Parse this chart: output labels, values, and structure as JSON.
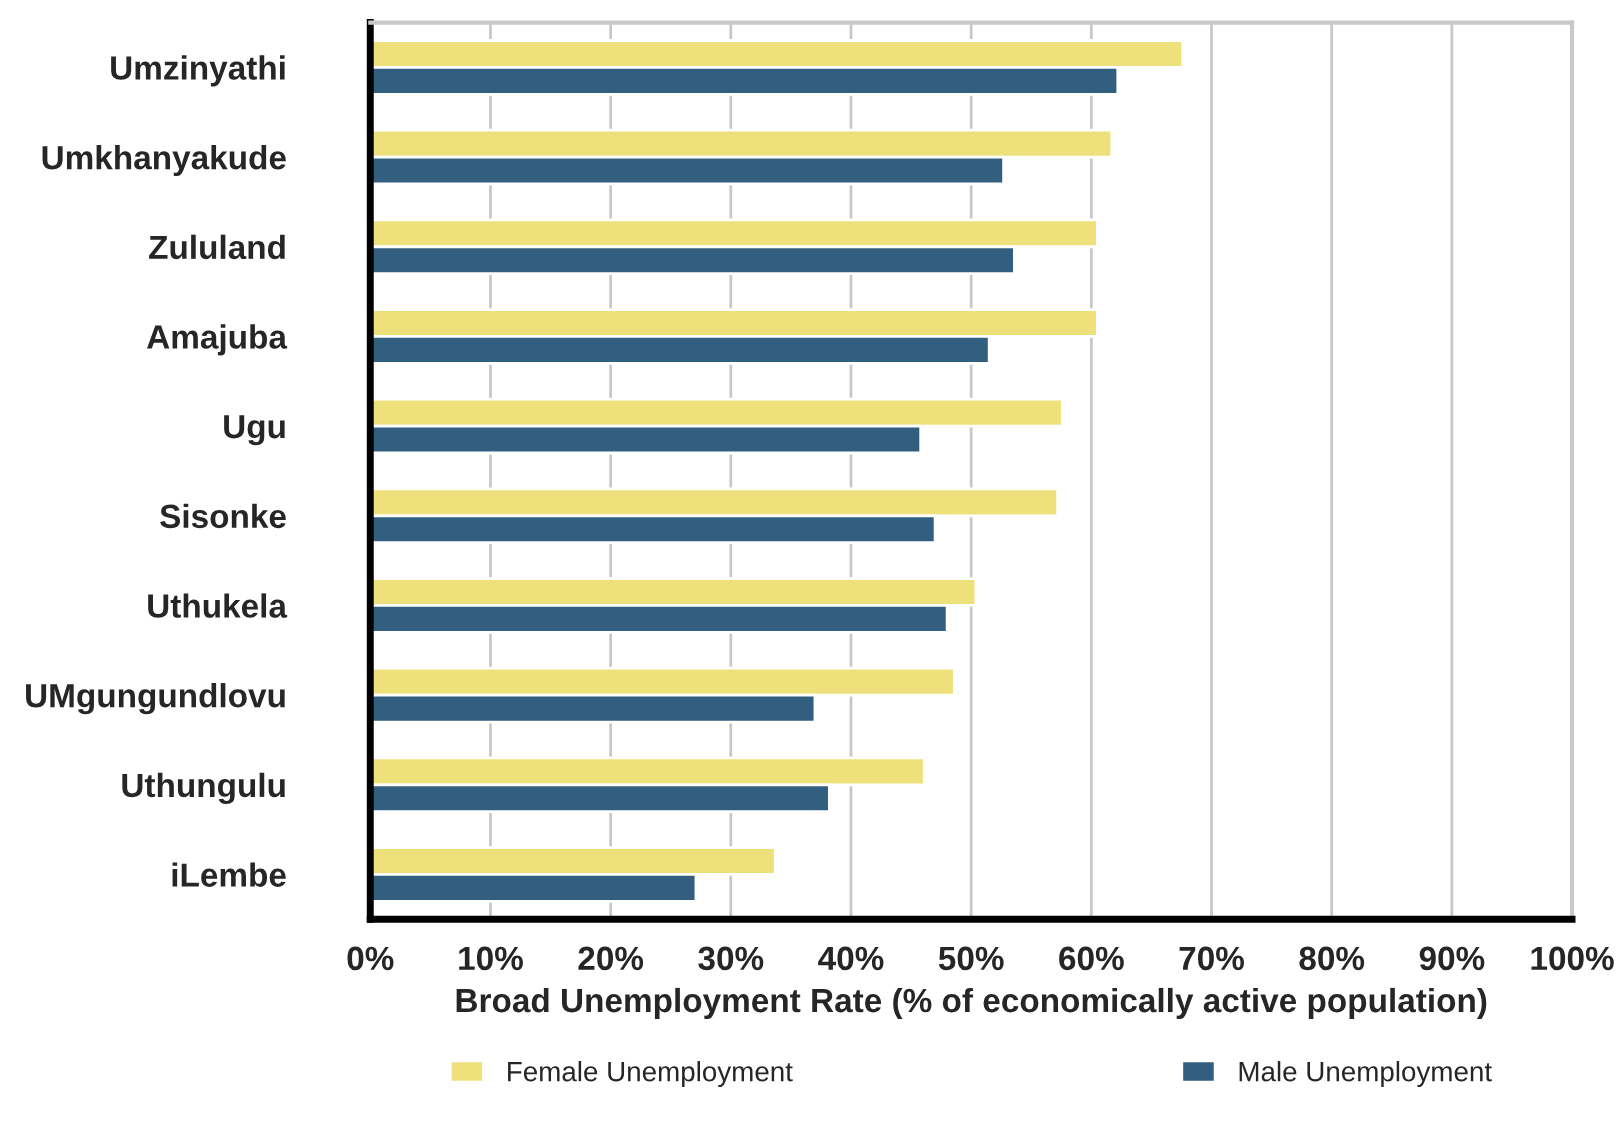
{
  "chart_data": {
    "type": "bar",
    "orientation": "horizontal",
    "categories": [
      "Umzinyathi",
      "Umkhanyakude",
      "Zululand",
      "Amajuba",
      "Ugu",
      "Sisonke",
      "Uthukela",
      "UMgungundlovu",
      "Uthungulu",
      "iLembe"
    ],
    "series": [
      {
        "name": "Female Unemployment",
        "color": "#eee07a",
        "values": [
          67.6,
          61.7,
          60.5,
          60.5,
          57.6,
          57.2,
          50.4,
          48.6,
          46.1,
          33.7
        ]
      },
      {
        "name": "Male Unemployment",
        "color": "#325f7f",
        "values": [
          62.2,
          52.7,
          53.6,
          51.5,
          45.8,
          47.0,
          48.0,
          37.0,
          38.2,
          27.1
        ]
      }
    ],
    "xlabel": "Broad Unemployment Rate (% of economically active population)",
    "xlim": [
      0,
      100
    ],
    "xticks": [
      {
        "value": 0,
        "label": "0%"
      },
      {
        "value": 10,
        "label": "10%"
      },
      {
        "value": 20,
        "label": "20%"
      },
      {
        "value": 30,
        "label": "30%"
      },
      {
        "value": 40,
        "label": "40%"
      },
      {
        "value": 50,
        "label": "50%"
      },
      {
        "value": 60,
        "label": "60%"
      },
      {
        "value": 70,
        "label": "70%"
      },
      {
        "value": 80,
        "label": "80%"
      },
      {
        "value": 90,
        "label": "90%"
      },
      {
        "value": 100,
        "label": "100%"
      }
    ],
    "grid": "x",
    "legend": "bottom"
  }
}
